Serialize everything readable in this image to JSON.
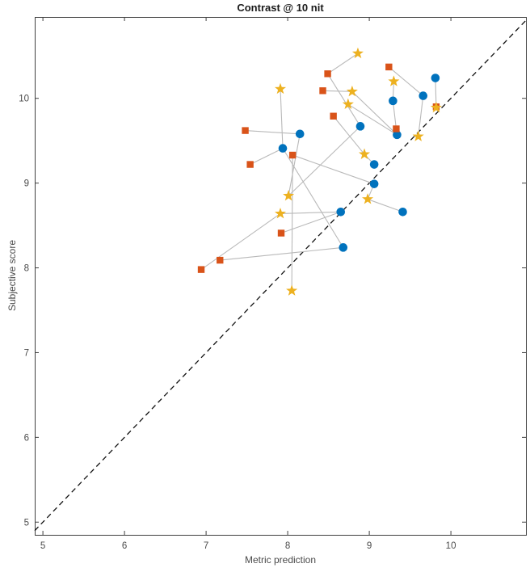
{
  "chart_data": {
    "type": "scatter",
    "title": "Contrast @ 10 nit",
    "xlabel": "Metric prediction",
    "ylabel": "Subjective score",
    "xlim": [
      4.9,
      10.92
    ],
    "ylim": [
      4.85,
      10.96
    ],
    "x_ticks": [
      "5",
      "6",
      "7",
      "8",
      "9",
      "10"
    ],
    "x_tick_values": [
      5,
      6,
      7,
      8,
      9,
      10
    ],
    "y_ticks": [
      "5",
      "6",
      "7",
      "8",
      "9",
      "10"
    ],
    "y_tick_values": [
      5,
      6,
      7,
      8,
      9,
      10
    ],
    "grid": false,
    "legend": null,
    "identity_line": {
      "style": "dashed",
      "color": "#111111",
      "equation": "y = x"
    },
    "series": [
      {
        "name": "blue-circles",
        "marker": "circle",
        "color": "#0072BD",
        "points": [
          [
            9.81,
            10.24
          ],
          [
            9.66,
            10.03
          ],
          [
            9.29,
            9.97
          ],
          [
            8.89,
            9.67
          ],
          [
            8.15,
            9.58
          ],
          [
            7.94,
            9.41
          ],
          [
            9.34,
            9.57
          ],
          [
            9.06,
            9.22
          ],
          [
            9.06,
            8.99
          ],
          [
            8.65,
            8.66
          ],
          [
            9.41,
            8.66
          ],
          [
            8.68,
            8.24
          ]
        ]
      },
      {
        "name": "orange-squares",
        "marker": "square",
        "color": "#D95319",
        "points": [
          [
            8.49,
            10.29
          ],
          [
            9.24,
            10.37
          ],
          [
            8.43,
            10.09
          ],
          [
            8.56,
            9.79
          ],
          [
            7.48,
            9.62
          ],
          [
            9.82,
            9.9
          ],
          [
            9.33,
            9.64
          ],
          [
            8.06,
            9.33
          ],
          [
            7.54,
            9.22
          ],
          [
            7.92,
            8.41
          ],
          [
            7.17,
            8.09
          ],
          [
            6.94,
            7.98
          ]
        ]
      },
      {
        "name": "yellow-stars",
        "marker": "star",
        "color": "#EDB120",
        "points": [
          [
            8.86,
            10.53
          ],
          [
            7.91,
            10.11
          ],
          [
            9.3,
            10.2
          ],
          [
            8.79,
            10.08
          ],
          [
            8.74,
            9.93
          ],
          [
            9.82,
            9.89
          ],
          [
            9.6,
            9.55
          ],
          [
            8.94,
            9.34
          ],
          [
            8.01,
            8.85
          ],
          [
            7.91,
            8.64
          ],
          [
            8.98,
            8.81
          ],
          [
            8.05,
            7.73
          ]
        ]
      }
    ],
    "connectors": {
      "color": "#b9b9b9",
      "segments": [
        [
          [
            8.49,
            10.29
          ],
          [
            8.86,
            10.53
          ]
        ],
        [
          [
            8.49,
            10.29
          ],
          [
            8.89,
            9.67
          ]
        ],
        [
          [
            8.43,
            10.09
          ],
          [
            8.79,
            10.08
          ]
        ],
        [
          [
            8.79,
            10.08
          ],
          [
            9.34,
            9.57
          ]
        ],
        [
          [
            7.91,
            10.11
          ],
          [
            7.94,
            9.41
          ]
        ],
        [
          [
            7.94,
            9.41
          ],
          [
            7.54,
            9.22
          ]
        ],
        [
          [
            7.48,
            9.62
          ],
          [
            8.15,
            9.58
          ]
        ],
        [
          [
            8.15,
            9.58
          ],
          [
            8.01,
            8.85
          ]
        ],
        [
          [
            8.01,
            8.85
          ],
          [
            8.89,
            9.67
          ]
        ],
        [
          [
            8.06,
            9.33
          ],
          [
            8.05,
            7.73
          ]
        ],
        [
          [
            8.06,
            9.33
          ],
          [
            9.06,
            8.99
          ]
        ],
        [
          [
            9.06,
            8.99
          ],
          [
            8.98,
            8.81
          ]
        ],
        [
          [
            8.98,
            8.81
          ],
          [
            9.41,
            8.66
          ]
        ],
        [
          [
            7.91,
            8.64
          ],
          [
            8.65,
            8.66
          ]
        ],
        [
          [
            6.94,
            7.98
          ],
          [
            7.91,
            8.64
          ]
        ],
        [
          [
            7.17,
            8.09
          ],
          [
            8.68,
            8.24
          ]
        ],
        [
          [
            7.92,
            8.41
          ],
          [
            8.65,
            8.66
          ]
        ],
        [
          [
            9.3,
            10.2
          ],
          [
            9.29,
            9.97
          ]
        ],
        [
          [
            9.29,
            9.97
          ],
          [
            9.33,
            9.64
          ]
        ],
        [
          [
            9.24,
            10.37
          ],
          [
            9.66,
            10.03
          ]
        ],
        [
          [
            9.66,
            10.03
          ],
          [
            9.6,
            9.55
          ]
        ],
        [
          [
            9.81,
            10.24
          ],
          [
            9.82,
            9.9
          ]
        ],
        [
          [
            9.34,
            9.57
          ],
          [
            8.74,
            9.93
          ]
        ],
        [
          [
            8.56,
            9.79
          ],
          [
            8.94,
            9.34
          ]
        ],
        [
          [
            8.94,
            9.34
          ],
          [
            9.06,
            9.22
          ]
        ],
        [
          [
            7.94,
            9.41
          ],
          [
            8.68,
            8.24
          ]
        ]
      ]
    },
    "colors": {
      "axis": "#404040",
      "tick_label": "#4a4a4a",
      "title": "#1a1a1a",
      "background": "#ffffff"
    }
  }
}
